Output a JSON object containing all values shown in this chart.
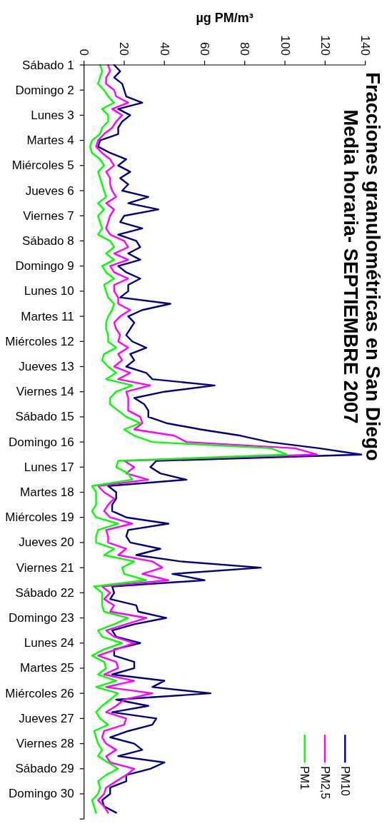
{
  "chart_data": {
    "type": "line",
    "orientation": "horizontal",
    "title": "Fracciones granulométricas en San Diego\nMedia horaria- SEPTIEMBRE 2007",
    "xlabel": "µg PM/m³",
    "xlim": [
      0,
      140
    ],
    "xticks": [
      0,
      20,
      40,
      60,
      80,
      100,
      120,
      140
    ],
    "categories": [
      "Sábado 1",
      null,
      null,
      null,
      "Domingo 2",
      null,
      null,
      null,
      "Lunes 3",
      null,
      null,
      null,
      "Martes 4",
      null,
      null,
      null,
      "Miércoles 5",
      null,
      null,
      null,
      "Jueves 6",
      null,
      null,
      null,
      "Viernes 7",
      null,
      null,
      null,
      "Sábado 8",
      null,
      null,
      null,
      "Domingo 9",
      null,
      null,
      null,
      "Lunes 10",
      null,
      null,
      null,
      "Martes 11",
      null,
      null,
      null,
      "Miércoles 12",
      null,
      null,
      null,
      "Jueves 13",
      null,
      null,
      null,
      "Viernes 14",
      null,
      null,
      null,
      "Sábado 15",
      null,
      null,
      null,
      "Domingo 16",
      null,
      null,
      null,
      "Lunes 17",
      null,
      null,
      null,
      "Martes 18",
      null,
      null,
      null,
      "Miércoles 19",
      null,
      null,
      null,
      "Jueves 20",
      null,
      null,
      null,
      "Viernes 21",
      null,
      null,
      null,
      "Sábado 22",
      null,
      null,
      null,
      "Domingo 23",
      null,
      null,
      null,
      "Lunes 24",
      null,
      null,
      null,
      "Martes 25",
      null,
      null,
      null,
      "Miércoles 26",
      null,
      null,
      null,
      "Jueves 27",
      null,
      null,
      null,
      "Viernes 28",
      null,
      null,
      null,
      "Sábado 29",
      null,
      null,
      null,
      "Domingo 30",
      null,
      null,
      null
    ],
    "legend": "bottom right",
    "series": [
      {
        "name": "PM10",
        "color": "#000080",
        "values": [
          15,
          18,
          15,
          19,
          20,
          21,
          29,
          17,
          23,
          19,
          17,
          17,
          8,
          7,
          13,
          21,
          17,
          23,
          18,
          22,
          19,
          32,
          22,
          37,
          20,
          18,
          29,
          17,
          26,
          28,
          22,
          28,
          17,
          21,
          28,
          22,
          22,
          18,
          43,
          29,
          22,
          25,
          23,
          21,
          24,
          31,
          23,
          25,
          21,
          31,
          34,
          65,
          40,
          25,
          30,
          32,
          32,
          41,
          58,
          78,
          92,
          117,
          138,
          36,
          33,
          38,
          51,
          12,
          16,
          16,
          14,
          14,
          21,
          42,
          22,
          21,
          23,
          38,
          26,
          48,
          88,
          44,
          60,
          14,
          15,
          13,
          26,
          27,
          41,
          25,
          14,
          16,
          28,
          15,
          15,
          25,
          25,
          14,
          40,
          34,
          63,
          16,
          32,
          14,
          36,
          34,
          22,
          13,
          25,
          29,
          17,
          40,
          33,
          21,
          21,
          13,
          13,
          9,
          10,
          16
        ]
      },
      {
        "name": "PM2,5",
        "color": "#ff00ff",
        "values": [
          12,
          13,
          11,
          11,
          15,
          16,
          22,
          14,
          19,
          16,
          14,
          10,
          7,
          6,
          9,
          13,
          15,
          11,
          13,
          13,
          14,
          16,
          11,
          15,
          13,
          12,
          11,
          13,
          20,
          22,
          15,
          22,
          13,
          15,
          22,
          15,
          15,
          17,
          17,
          23,
          18,
          15,
          16,
          18,
          17,
          22,
          17,
          19,
          15,
          23,
          17,
          33,
          21,
          22,
          22,
          22,
          28,
          29,
          25,
          45,
          51,
          105,
          116,
          20,
          25,
          21,
          32,
          7,
          10,
          15,
          12,
          10,
          13,
          24,
          11,
          12,
          12,
          21,
          17,
          34,
          39,
          29,
          42,
          9,
          13,
          10,
          15,
          13,
          31,
          21,
          11,
          15,
          25,
          16,
          7,
          16,
          17,
          10,
          25,
          11,
          34,
          20,
          16,
          11,
          21,
          20,
          10,
          9,
          11,
          16,
          11,
          13,
          25,
          21,
          16,
          11,
          10,
          7,
          10,
          12
        ]
      },
      {
        "name": "PM1",
        "color": "#00ff00",
        "values": [
          8,
          9,
          8,
          7,
          10,
          12,
          15,
          9,
          12,
          12,
          9,
          8,
          4,
          3,
          4,
          8,
          10,
          7,
          8,
          9,
          10,
          11,
          7,
          10,
          7,
          8,
          9,
          7,
          13,
          15,
          11,
          15,
          9,
          11,
          15,
          10,
          11,
          12,
          15,
          14,
          12,
          11,
          11,
          12,
          12,
          16,
          10,
          9,
          12,
          16,
          11,
          24,
          16,
          13,
          13,
          17,
          21,
          28,
          20,
          25,
          34,
          93,
          101,
          17,
          16,
          22,
          24,
          4,
          6,
          6,
          6,
          4,
          6,
          17,
          7,
          6,
          6,
          15,
          10,
          25,
          19,
          20,
          31,
          5,
          9,
          9,
          9,
          10,
          22,
          15,
          7,
          9,
          19,
          10,
          4,
          10,
          11,
          7,
          16,
          6,
          17,
          13,
          9,
          6,
          8,
          12,
          5,
          6,
          7,
          9,
          7,
          12,
          17,
          11,
          7,
          8,
          7,
          4,
          5,
          6
        ]
      }
    ]
  }
}
